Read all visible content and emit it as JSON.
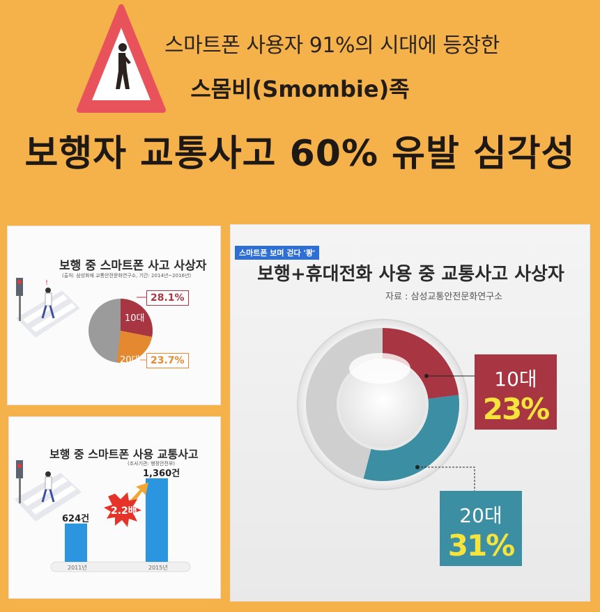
{
  "header": {
    "line1": "스마트폰 사용자 91%의 시대에 등장한",
    "line2": "스몸비(Smombie)족",
    "line3": "보행자 교통사고 60% 유발 심각성"
  },
  "icons": {
    "warning": "warning-pedestrian-phone-icon",
    "crossing": "crosswalk-pedestrian-icon",
    "burst": "burst-icon",
    "arrow": "up-arrow-icon"
  },
  "colors": {
    "background": "#f5b24a",
    "teen_red": "#a83642",
    "twenties_orange": "#e4892f",
    "twenties_teal": "#3c8fa3",
    "bar_blue": "#2b95e0",
    "highlight_yellow": "#f6e43c"
  },
  "panel_a": {
    "title": "보행 중 스마트폰 사고 사상자",
    "subtitle": "(출처: 삼성화재 교통안전문화연구소, 기간: 2014년~2016년)",
    "chart_data": {
      "type": "pie",
      "slices": [
        {
          "label": "10대",
          "value": 28.1,
          "value_label": "28.1%"
        },
        {
          "label": "20대",
          "value": 23.7,
          "value_label": "23.7%"
        },
        {
          "label": "",
          "value": 48.2
        }
      ]
    }
  },
  "panel_b": {
    "title": "보행 중 스마트폰 사용 교통사고",
    "subtitle": "(조사기관: 행정안전부)",
    "multiplier": "2.2배",
    "chart_data": {
      "type": "bar",
      "categories": [
        "2011년",
        "2015년"
      ],
      "values": [
        624,
        1360
      ],
      "value_labels": [
        "624건",
        "1,360건"
      ]
    }
  },
  "panel_c": {
    "badge": "스마트폰 보며 걷다 '쾅'",
    "title": "보행+휴대전화 사용 중 교통사고 사상자",
    "source": "자료 : 삼성교통안전문화연구소",
    "chart_data": {
      "type": "pie",
      "slices": [
        {
          "label": "10대",
          "value": 23,
          "value_label": "23%"
        },
        {
          "label": "20대",
          "value": 31,
          "value_label": "31%"
        }
      ]
    }
  }
}
